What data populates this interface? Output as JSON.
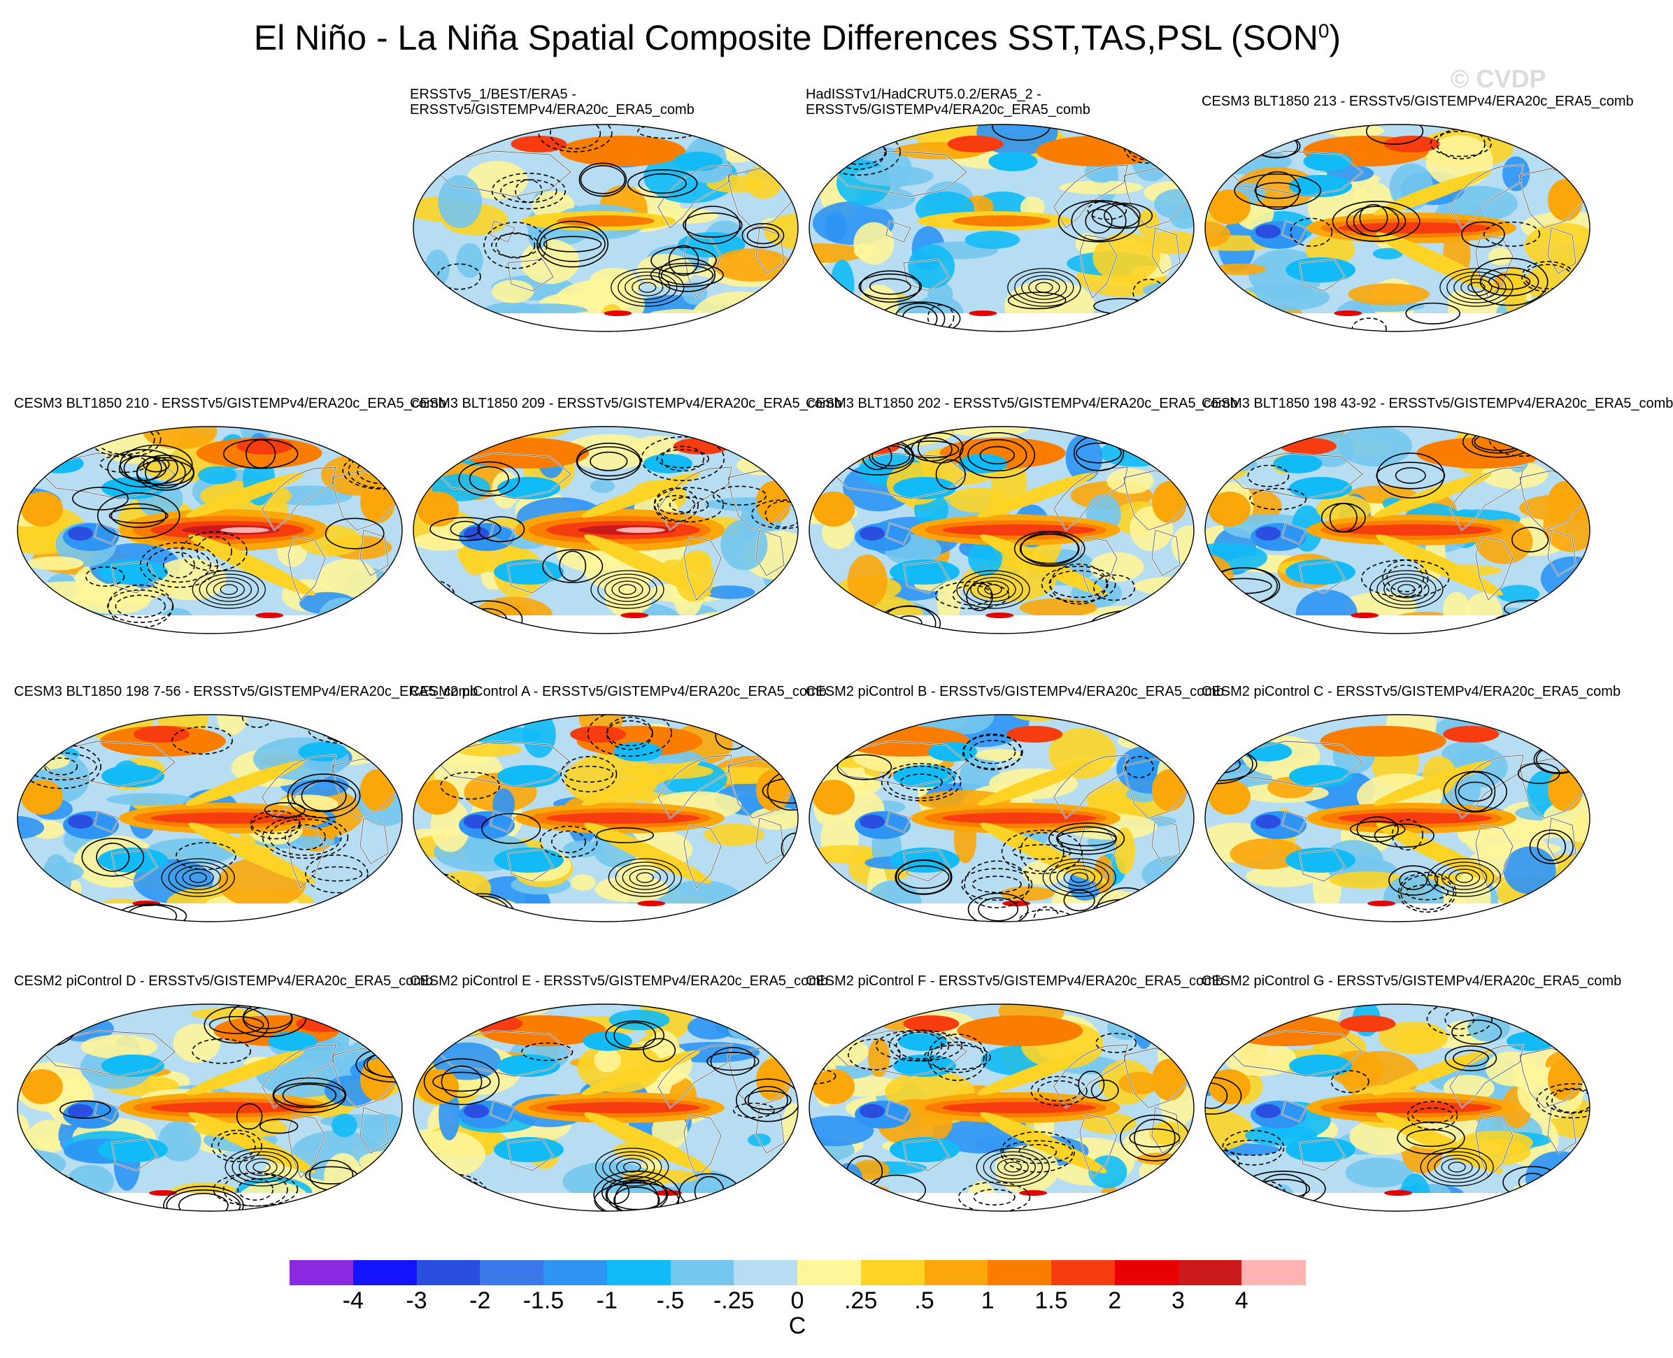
{
  "title": {
    "main": "El Niño - La Niña Spatial Composite Differences SST,TAS,PSL (SON",
    "superscript": "0",
    "close": ")"
  },
  "watermark": "© CVDP",
  "panels": [
    {
      "title_lines": [
        "ERSSTv5_1/BEST/ERA5 -",
        "ERSSTv5/GISTEMPv4/ERA20c_ERA5_comb"
      ],
      "pattern": "obs"
    },
    {
      "title_lines": [
        "HadISSTv1/HadCRUT5.0.2/ERA5_2 -",
        "ERSSTv5/GISTEMPv4/ERA20c_ERA5_comb"
      ],
      "pattern": "obs"
    },
    {
      "title_lines": [
        "CESM3 BLT1850 213 - ERSSTv5/GISTEMPv4/ERA20c_ERA5_comb"
      ],
      "pattern": "model"
    },
    {
      "title_lines": [
        "CESM3 BLT1850 210 - ERSSTv5/GISTEMPv4/ERA20c_ERA5_comb"
      ],
      "pattern": "strong"
    },
    {
      "title_lines": [
        "CESM3 BLT1850 209 - ERSSTv5/GISTEMPv4/ERA20c_ERA5_comb"
      ],
      "pattern": "strong"
    },
    {
      "title_lines": [
        "CESM3 BLT1850 202 - ERSSTv5/GISTEMPv4/ERA20c_ERA5_comb"
      ],
      "pattern": "model"
    },
    {
      "title_lines": [
        "CESM3 BLT1850 198 43-92 - ERSSTv5/GISTEMPv4/ERA20c_ERA5_comb"
      ],
      "pattern": "model"
    },
    {
      "title_lines": [
        "CESM3 BLT1850 198 7-56 - ERSSTv5/GISTEMPv4/ERA20c_ERA5_comb"
      ],
      "pattern": "model"
    },
    {
      "title_lines": [
        "CESM2 piControl A - ERSSTv5/GISTEMPv4/ERA20c_ERA5_comb"
      ],
      "pattern": "model"
    },
    {
      "title_lines": [
        "CESM2 piControl B - ERSSTv5/GISTEMPv4/ERA20c_ERA5_comb"
      ],
      "pattern": "model"
    },
    {
      "title_lines": [
        "CESM2 piControl C - ERSSTv5/GISTEMPv4/ERA20c_ERA5_comb"
      ],
      "pattern": "model"
    },
    {
      "title_lines": [
        "CESM2 piControl D - ERSSTv5/GISTEMPv4/ERA20c_ERA5_comb"
      ],
      "pattern": "model"
    },
    {
      "title_lines": [
        "CESM2 piControl E - ERSSTv5/GISTEMPv4/ERA20c_ERA5_comb"
      ],
      "pattern": "model"
    },
    {
      "title_lines": [
        "CESM2 piControl F - ERSSTv5/GISTEMPv4/ERA20c_ERA5_comb"
      ],
      "pattern": "model"
    },
    {
      "title_lines": [
        "CESM2 piControl G - ERSSTv5/GISTEMPv4/ERA20c_ERA5_comb"
      ],
      "pattern": "model"
    }
  ],
  "colorbar": {
    "colors": [
      "#8a2be2",
      "#1414ff",
      "#2a4fe0",
      "#3b78e8",
      "#2e95f5",
      "#12bbf6",
      "#74c6ee",
      "#b6ddf2",
      "#fff59a",
      "#fdd426",
      "#fba609",
      "#fa7d00",
      "#f73c10",
      "#e60000",
      "#cc1a1a",
      "#ffb3b3"
    ],
    "tick_labels": [
      "-4",
      "-3",
      "-2",
      "-1.5",
      "-1",
      "-.5",
      "-.25",
      "0",
      ".25",
      ".5",
      "1",
      "1.5",
      "2",
      "3",
      "4"
    ],
    "unit": "C"
  }
}
